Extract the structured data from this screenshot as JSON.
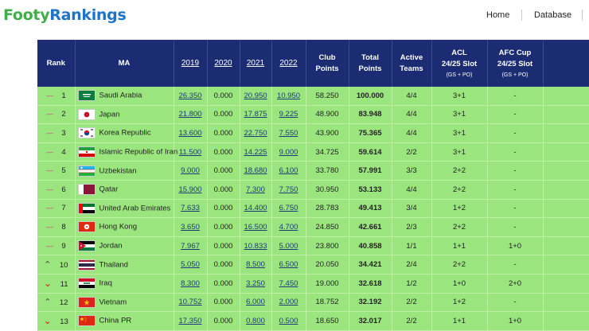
{
  "brand": {
    "part1": "Footy",
    "part2": "Rankings"
  },
  "nav": [
    {
      "label": "Home"
    },
    {
      "label": "Database"
    }
  ],
  "columns": {
    "rank": "Rank",
    "ma": "MA",
    "y2019": "2019",
    "y2020": "2020",
    "y2021": "2021",
    "y2022": "2022",
    "club1": "Club",
    "club2": "Points",
    "total1": "Total",
    "total2": "Points",
    "active1": "Active",
    "active2": "Teams",
    "acl1": "ACL",
    "acl2": "24/25 Slot",
    "acl3": "(GS + PO)",
    "afc1": "AFC Cup",
    "afc2": "24/25 Slot",
    "afc3": "(GS + PO)"
  },
  "rows": [
    {
      "move": "—",
      "dir": "same",
      "rank": "1",
      "flag": "saudi-arabia",
      "name": "Saudi Arabia",
      "y2019": "26.350",
      "y2020": "0.000",
      "y2021": "20.950",
      "y2022": "10.950",
      "club": "58.250",
      "total": "100.000",
      "active": "4/4",
      "acl": "3+1",
      "afc": "-"
    },
    {
      "move": "—",
      "dir": "same",
      "rank": "2",
      "flag": "japan",
      "name": "Japan",
      "y2019": "21.800",
      "y2020": "0.000",
      "y2021": "17.875",
      "y2022": "9.225",
      "club": "48.900",
      "total": "83.948",
      "active": "4/4",
      "acl": "3+1",
      "afc": "-"
    },
    {
      "move": "—",
      "dir": "same",
      "rank": "3",
      "flag": "korea",
      "name": "Korea Republic",
      "y2019": "13.600",
      "y2020": "0.000",
      "y2021": "22.750",
      "y2022": "7.550",
      "club": "43.900",
      "total": "75.365",
      "active": "4/4",
      "acl": "3+1",
      "afc": "-"
    },
    {
      "move": "—",
      "dir": "same",
      "rank": "4",
      "flag": "iran",
      "name": "Islamic Republic of Iran",
      "y2019": "11.500",
      "y2020": "0.000",
      "y2021": "14.225",
      "y2022": "9.000",
      "club": "34.725",
      "total": "59.614",
      "active": "2/2",
      "acl": "3+1",
      "afc": "-"
    },
    {
      "move": "—",
      "dir": "same",
      "rank": "5",
      "flag": "uzbekistan",
      "name": "Uzbekistan",
      "y2019": "9.000",
      "y2020": "0.000",
      "y2021": "18.680",
      "y2022": "6.100",
      "club": "33.780",
      "total": "57.991",
      "active": "3/3",
      "acl": "2+2",
      "afc": "-"
    },
    {
      "move": "—",
      "dir": "same",
      "rank": "6",
      "flag": "qatar",
      "name": "Qatar",
      "y2019": "15.900",
      "y2020": "0.000",
      "y2021": "7.300",
      "y2022": "7.750",
      "club": "30.950",
      "total": "53.133",
      "active": "4/4",
      "acl": "2+2",
      "afc": "-"
    },
    {
      "move": "—",
      "dir": "same",
      "rank": "7",
      "flag": "uae",
      "name": "United Arab Emirates",
      "y2019": "7.633",
      "y2020": "0.000",
      "y2021": "14.400",
      "y2022": "6.750",
      "club": "28.783",
      "total": "49.413",
      "active": "3/4",
      "acl": "1+2",
      "afc": "-"
    },
    {
      "move": "—",
      "dir": "same",
      "rank": "8",
      "flag": "hong-kong",
      "name": "Hong Kong",
      "y2019": "3.650",
      "y2020": "0.000",
      "y2021": "16.500",
      "y2022": "4.700",
      "club": "24.850",
      "total": "42.661",
      "active": "2/3",
      "acl": "2+2",
      "afc": "-"
    },
    {
      "move": "—",
      "dir": "same",
      "rank": "9",
      "flag": "jordan",
      "name": "Jordan",
      "y2019": "7.967",
      "y2020": "0.000",
      "y2021": "10.833",
      "y2022": "5.000",
      "club": "23.800",
      "total": "40.858",
      "active": "1/1",
      "acl": "1+1",
      "afc": "1+0"
    },
    {
      "move": "^",
      "dir": "up",
      "rank": "10",
      "flag": "thailand",
      "name": "Thailand",
      "y2019": "5.050",
      "y2020": "0.000",
      "y2021": "8.500",
      "y2022": "6.500",
      "club": "20.050",
      "total": "34.421",
      "active": "2/4",
      "acl": "2+2",
      "afc": "-"
    },
    {
      "move": "v",
      "dir": "down",
      "rank": "11",
      "flag": "iraq",
      "name": "Iraq",
      "y2019": "8.300",
      "y2020": "0.000",
      "y2021": "3.250",
      "y2022": "7.450",
      "club": "19.000",
      "total": "32.618",
      "active": "1/2",
      "acl": "1+0",
      "afc": "2+0"
    },
    {
      "move": "^",
      "dir": "up",
      "rank": "12",
      "flag": "vietnam",
      "name": "Vietnam",
      "y2019": "10.752",
      "y2020": "0.000",
      "y2021": "6.000",
      "y2022": "2.000",
      "club": "18.752",
      "total": "32.192",
      "active": "2/2",
      "acl": "1+2",
      "afc": "-"
    },
    {
      "move": "v",
      "dir": "down",
      "rank": "13",
      "flag": "china",
      "name": "China PR",
      "y2019": "17.350",
      "y2020": "0.000",
      "y2021": "0.800",
      "y2022": "0.500",
      "club": "18.650",
      "total": "32.017",
      "active": "2/2",
      "acl": "1+1",
      "afc": "1+0"
    }
  ],
  "colors": {
    "header_bg": "#1b2c73",
    "row_bg": "#9be57f",
    "brand_green": "#3fae49",
    "brand_blue": "#1f74c8"
  }
}
